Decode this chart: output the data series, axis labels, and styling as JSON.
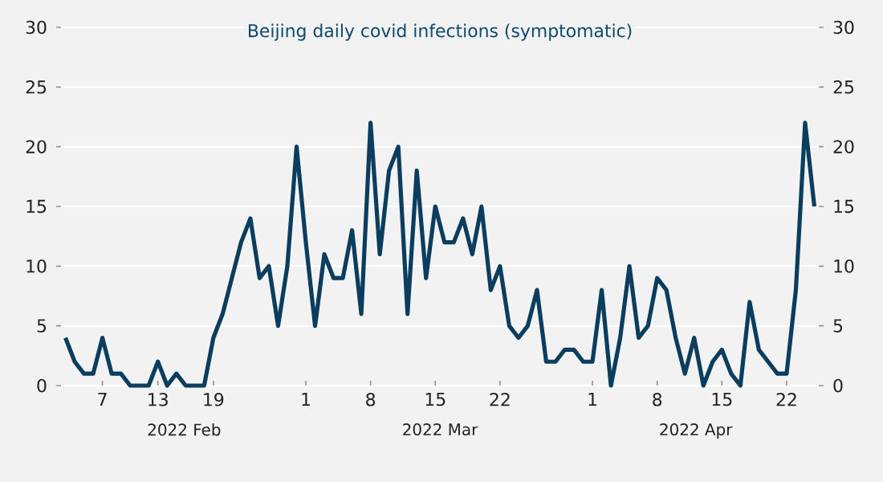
{
  "chart_data": {
    "type": "line",
    "title": "Beijing daily covid infections (symptomatic)",
    "x": [
      "2022-02-03",
      "2022-02-04",
      "2022-02-05",
      "2022-02-06",
      "2022-02-07",
      "2022-02-08",
      "2022-02-09",
      "2022-02-10",
      "2022-02-11",
      "2022-02-12",
      "2022-02-13",
      "2022-02-14",
      "2022-02-15",
      "2022-02-16",
      "2022-02-17",
      "2022-02-18",
      "2022-02-19",
      "2022-02-20",
      "2022-02-21",
      "2022-02-22",
      "2022-02-23",
      "2022-02-24",
      "2022-02-25",
      "2022-02-26",
      "2022-02-27",
      "2022-02-28",
      "2022-03-01",
      "2022-03-02",
      "2022-03-03",
      "2022-03-04",
      "2022-03-05",
      "2022-03-06",
      "2022-03-07",
      "2022-03-08",
      "2022-03-09",
      "2022-03-10",
      "2022-03-11",
      "2022-03-12",
      "2022-03-13",
      "2022-03-14",
      "2022-03-15",
      "2022-03-16",
      "2022-03-17",
      "2022-03-18",
      "2022-03-19",
      "2022-03-20",
      "2022-03-21",
      "2022-03-22",
      "2022-03-23",
      "2022-03-24",
      "2022-03-25",
      "2022-03-26",
      "2022-03-27",
      "2022-03-28",
      "2022-03-29",
      "2022-03-30",
      "2022-03-31",
      "2022-04-01",
      "2022-04-02",
      "2022-04-03",
      "2022-04-04",
      "2022-04-05",
      "2022-04-06",
      "2022-04-07",
      "2022-04-08",
      "2022-04-09",
      "2022-04-10",
      "2022-04-11",
      "2022-04-12",
      "2022-04-13",
      "2022-04-14",
      "2022-04-15",
      "2022-04-16",
      "2022-04-17",
      "2022-04-18",
      "2022-04-19",
      "2022-04-20",
      "2022-04-21",
      "2022-04-22",
      "2022-04-23",
      "2022-04-24",
      "2022-04-25"
    ],
    "series": [
      {
        "color": "#0b3d5e",
        "values": [
          4,
          2,
          1,
          1,
          4,
          1,
          1,
          0,
          0,
          0,
          2,
          0,
          1,
          0,
          0,
          0,
          4,
          6,
          9,
          12,
          14,
          9,
          10,
          5,
          10,
          20,
          12,
          5,
          11,
          9,
          9,
          13,
          6,
          22,
          11,
          18,
          20,
          6,
          18,
          9,
          15,
          12,
          12,
          14,
          11,
          15,
          8,
          10,
          5,
          4,
          5,
          8,
          2,
          2,
          3,
          3,
          2,
          2,
          8,
          0,
          4,
          10,
          4,
          5,
          9,
          8,
          4,
          1,
          4,
          0,
          2,
          3,
          1,
          0,
          7,
          3,
          2,
          1,
          1,
          8,
          22,
          15
        ]
      }
    ],
    "xlim": [
      "2022-02-02",
      "2022-04-26"
    ],
    "xticks": [
      {
        "value": "2022-02-07",
        "label": "7"
      },
      {
        "value": "2022-02-13",
        "label": "13"
      },
      {
        "value": "2022-02-19",
        "label": "19"
      },
      {
        "value": "2022-03-01",
        "label": "1"
      },
      {
        "value": "2022-03-08",
        "label": "8"
      },
      {
        "value": "2022-03-15",
        "label": "15"
      },
      {
        "value": "2022-03-22",
        "label": "22"
      },
      {
        "value": "2022-04-01",
        "label": "1"
      },
      {
        "value": "2022-04-08",
        "label": "8"
      },
      {
        "value": "2022-04-15",
        "label": "15"
      },
      {
        "value": "2022-04-22",
        "label": "22"
      }
    ],
    "ylim": [
      0,
      30
    ],
    "yticks": [
      0,
      5,
      10,
      15,
      20,
      25,
      30
    ],
    "y2lim": [
      0,
      30
    ],
    "y2ticks": [
      0,
      5,
      10,
      15,
      20,
      25,
      30
    ],
    "annotations": [
      "2022 Feb",
      "2022 Mar",
      "2022 Apr"
    ],
    "grid": "y",
    "marker": "none",
    "line_style": "solid"
  }
}
